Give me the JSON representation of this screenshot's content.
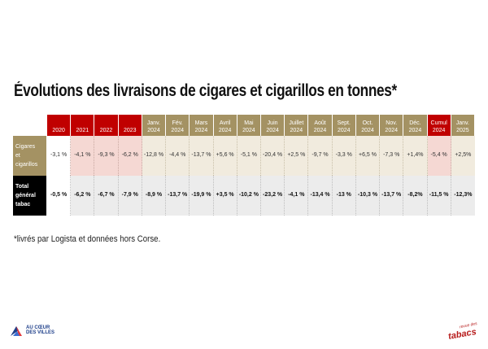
{
  "title": "Évolutions des livraisons de cigares et cigarillos en tonnes*",
  "columns": [
    {
      "l1": "2020",
      "l2": "",
      "type": "year"
    },
    {
      "l1": "2021",
      "l2": "",
      "type": "year"
    },
    {
      "l1": "2022",
      "l2": "",
      "type": "year"
    },
    {
      "l1": "2023",
      "l2": "",
      "type": "year"
    },
    {
      "l1": "Janv.",
      "l2": "2024",
      "type": "month"
    },
    {
      "l1": "Fév.",
      "l2": "2024",
      "type": "month"
    },
    {
      "l1": "Mars",
      "l2": "2024",
      "type": "month"
    },
    {
      "l1": "Avril",
      "l2": "2024",
      "type": "month"
    },
    {
      "l1": "Mai",
      "l2": "2024",
      "type": "month"
    },
    {
      "l1": "Juin",
      "l2": "2024",
      "type": "month"
    },
    {
      "l1": "Juillet",
      "l2": "2024",
      "type": "month"
    },
    {
      "l1": "Août",
      "l2": "2024",
      "type": "month"
    },
    {
      "l1": "Sept.",
      "l2": "2024",
      "type": "month"
    },
    {
      "l1": "Oct.",
      "l2": "2024",
      "type": "month"
    },
    {
      "l1": "Nov.",
      "l2": "2024",
      "type": "month"
    },
    {
      "l1": "Déc.",
      "l2": "2024",
      "type": "month"
    },
    {
      "l1": "Cumul",
      "l2": "2024",
      "type": "cumul"
    },
    {
      "l1": "Janv.",
      "l2": "2025",
      "type": "month"
    }
  ],
  "rows": [
    {
      "label_lines": [
        "Cigares",
        "et",
        "cigarillos"
      ],
      "values": [
        "-3,1 %",
        "-4,1 %",
        "-9,3 %",
        "-6,2 %",
        "-12,8 %",
        "-4,4 %",
        "-13,7 %",
        "+5,6 %",
        "-5,1 %",
        "-20,4 %",
        "+2,5 %",
        "-9,7 %",
        "-3,3 %",
        "+6,5 %",
        "-7,3 %",
        "+1,4%",
        "-5,4 %",
        "+2,5%"
      ]
    },
    {
      "label_lines": [
        "Total",
        "général",
        "tabac"
      ],
      "values": [
        "-0,5 %",
        "-6,2 %",
        "-6,7 %",
        "-7,9 %",
        "-8,9 %",
        "-13,7 %",
        "-19,9 %",
        "+3,5 %",
        "-10,2 %",
        "-23,2 %",
        "-4,1 %",
        "-13,4 %",
        "-13 %",
        "-10,3 %",
        "-13,7 %",
        "-8,2%",
        "-11,5 %",
        "-12,3%"
      ]
    }
  ],
  "note": "*livrés par Logista et données hors Corse.",
  "logo_left": {
    "line1": "AU CŒUR",
    "line2": "DES VILLES"
  },
  "logo_right": {
    "small": "revue des",
    "big": "tabacs"
  },
  "colors": {
    "year_header": "#c00000",
    "month_header": "#a49263",
    "label_dark": "#000000"
  }
}
